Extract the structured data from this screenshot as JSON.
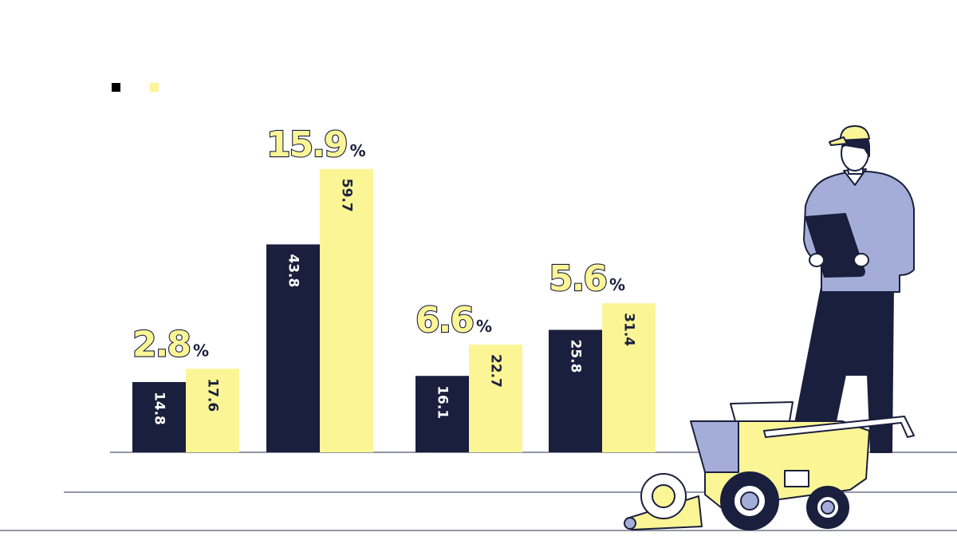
{
  "colors": {
    "navy": "#1a1f3d",
    "yellow": "#fbf596",
    "shirt": "#a4add8",
    "outline": "#1a1f3d",
    "line": "#55596b"
  },
  "legend": [
    {
      "swatch": "navy"
    },
    {
      "swatch": "yellow"
    }
  ],
  "chart_data": {
    "type": "bar",
    "categories": [
      "",
      "",
      "",
      ""
    ],
    "series": [
      {
        "values": [
          14.8,
          43.8,
          16.1,
          25.8
        ]
      },
      {
        "values": [
          17.6,
          59.7,
          22.7,
          31.4
        ]
      }
    ],
    "value_labels": [
      [
        "14.8",
        "43.8",
        "16.1",
        "25.8"
      ],
      [
        "17.6",
        "59.7",
        "22.7",
        "31.4"
      ]
    ],
    "group_annotations": [
      {
        "value": "2.8",
        "unit": "%"
      },
      {
        "value": "15.9",
        "unit": "%"
      },
      {
        "value": "6.6",
        "unit": "%"
      },
      {
        "value": "5.6",
        "unit": "%"
      }
    ],
    "title": "",
    "xlabel": "",
    "ylabel": "",
    "ylim": [
      0,
      60
    ],
    "grid": false,
    "legend_position": "top-left"
  },
  "illustration": {
    "subject": "farmer-with-tablet-and-combine-harvester"
  }
}
